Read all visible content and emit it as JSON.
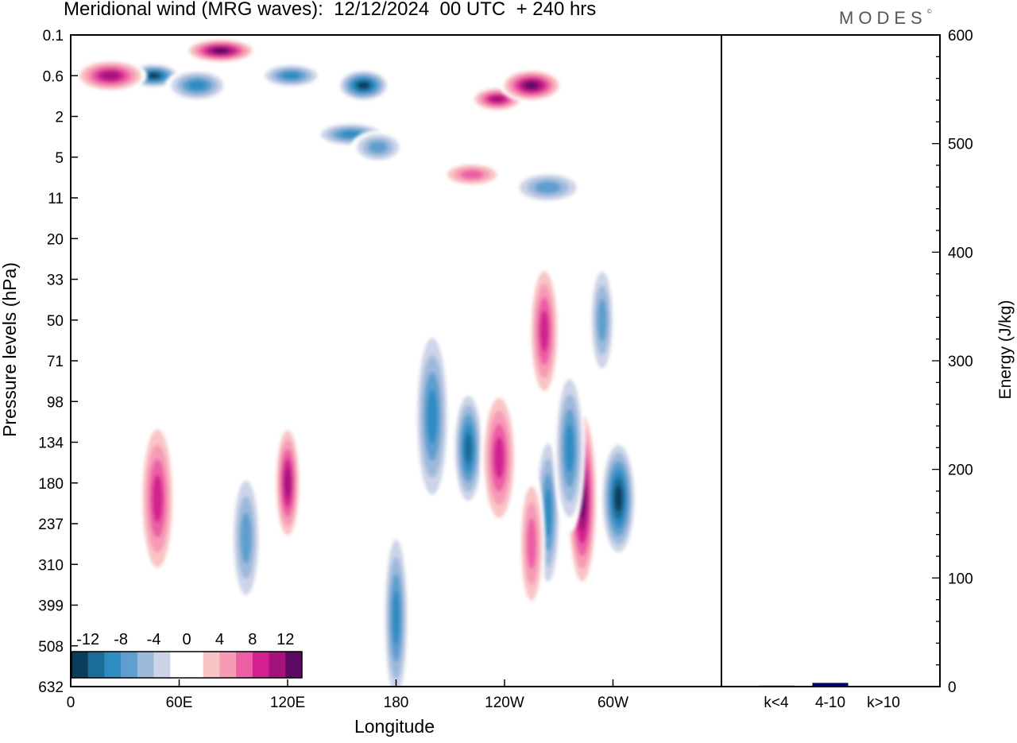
{
  "header": {
    "title": "Meridional wind (MRG waves):  12/12/2024  00 UTC  + 240 hrs",
    "logo": "MODES",
    "logo_mark": "©"
  },
  "chart_data": [
    {
      "type": "heatmap",
      "title": "Meridional wind (MRG waves):  12/12/2024  00 UTC  + 240 hrs",
      "xlabel": "Longitude",
      "ylabel": "Pressure levels (hPa)",
      "x_ticks": [
        "0",
        "60E",
        "120E",
        "180",
        "120W",
        "60W"
      ],
      "y_ticks": [
        "0.1",
        "0.6",
        "2",
        "5",
        "11",
        "20",
        "33",
        "50",
        "71",
        "98",
        "134",
        "180",
        "237",
        "310",
        "399",
        "508",
        "632"
      ],
      "colorbar": {
        "tick_labels": [
          "-12",
          "-8",
          "-4",
          "0",
          "4",
          "8",
          "12"
        ],
        "levels": [
          -14,
          -12,
          -10,
          -8,
          -6,
          -4,
          -2,
          0,
          2,
          4,
          6,
          8,
          10,
          12,
          14
        ],
        "colors": [
          "#0a3d5c",
          "#1b6c96",
          "#2f8cc2",
          "#5f9fcf",
          "#9db9da",
          "#cdd4e8",
          "#ffffff",
          "#ffffff",
          "#f9c4c4",
          "#f69ab6",
          "#ec5fa4",
          "#d2208f",
          "#a4137c",
          "#5c0a63"
        ]
      },
      "features": [
        {
          "lon": 46,
          "level": 0.6,
          "v": -13
        },
        {
          "lon": 70,
          "level": 0.8,
          "v": -10
        },
        {
          "lon": 83,
          "level": 0.2,
          "v": 13
        },
        {
          "lon": 162,
          "level": 0.8,
          "v": -14
        },
        {
          "lon": 122,
          "level": 0.6,
          "v": -10
        },
        {
          "lon": 22,
          "level": 0.6,
          "v": 11
        },
        {
          "lon": 236,
          "level": 1.2,
          "v": 12
        },
        {
          "lon": 255,
          "level": 0.8,
          "v": 13
        },
        {
          "lon": 155,
          "level": 3,
          "v": -9
        },
        {
          "lon": 170,
          "level": 4,
          "v": -7
        },
        {
          "lon": 222,
          "level": 7,
          "v": 8
        },
        {
          "lon": 264,
          "level": 9,
          "v": -8
        },
        {
          "lon": 120,
          "level": 180,
          "v": 12
        },
        {
          "lon": 97,
          "level": 260,
          "v": -8
        },
        {
          "lon": 48,
          "level": 200,
          "v": 9
        },
        {
          "lon": 180,
          "level": 430,
          "v": -10
        },
        {
          "lon": 220,
          "level": 140,
          "v": -11
        },
        {
          "lon": 237,
          "level": 150,
          "v": 9
        },
        {
          "lon": 264,
          "level": 220,
          "v": -10
        },
        {
          "lon": 283,
          "level": 200,
          "v": 14
        },
        {
          "lon": 303,
          "level": 200,
          "v": -14
        },
        {
          "lon": 255,
          "level": 270,
          "v": 8
        },
        {
          "lon": 276,
          "level": 140,
          "v": -10
        },
        {
          "lon": 200,
          "level": 110,
          "v": -9
        },
        {
          "lon": 294,
          "level": 50,
          "v": -8
        },
        {
          "lon": 262,
          "level": 55,
          "v": 9
        }
      ]
    },
    {
      "type": "bar",
      "ylabel": "Energy (J/kg)",
      "categories": [
        "k<4",
        "4-10",
        "k>10"
      ],
      "values": [
        0.5,
        3,
        0
      ],
      "ylim": [
        0,
        600
      ],
      "y_ticks": [
        0,
        100,
        200,
        300,
        400,
        500,
        600
      ],
      "bar_color": "#000080"
    }
  ]
}
